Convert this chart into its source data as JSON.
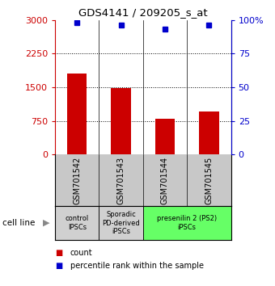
{
  "title": "GDS4141 / 209205_s_at",
  "samples": [
    "GSM701542",
    "GSM701543",
    "GSM701544",
    "GSM701545"
  ],
  "counts": [
    1800,
    1480,
    800,
    950
  ],
  "percentiles": [
    98,
    96,
    93,
    96
  ],
  "ylim_left": [
    0,
    3000
  ],
  "ylim_right": [
    0,
    100
  ],
  "yticks_left": [
    0,
    750,
    1500,
    2250,
    3000
  ],
  "yticks_right": [
    0,
    25,
    50,
    75,
    100
  ],
  "ytick_labels_left": [
    "0",
    "750",
    "1500",
    "2250",
    "3000"
  ],
  "ytick_labels_right": [
    "0",
    "25",
    "50",
    "75",
    "100%"
  ],
  "bar_color": "#cc0000",
  "dot_color": "#0000cc",
  "groups": [
    {
      "label": "control\nIPSCs",
      "start": 0,
      "end": 1,
      "color": "#d0d0d0"
    },
    {
      "label": "Sporadic\nPD-derived\niPSCs",
      "start": 1,
      "end": 2,
      "color": "#d0d0d0"
    },
    {
      "label": "presenilin 2 (PS2)\niPSCs",
      "start": 2,
      "end": 4,
      "color": "#66ff66"
    }
  ],
  "cell_line_label": "cell line",
  "legend_count_label": "count",
  "legend_pct_label": "percentile rank within the sample",
  "background_color": "#ffffff",
  "bar_width": 0.45,
  "sample_box_bg": "#c8c8c8"
}
